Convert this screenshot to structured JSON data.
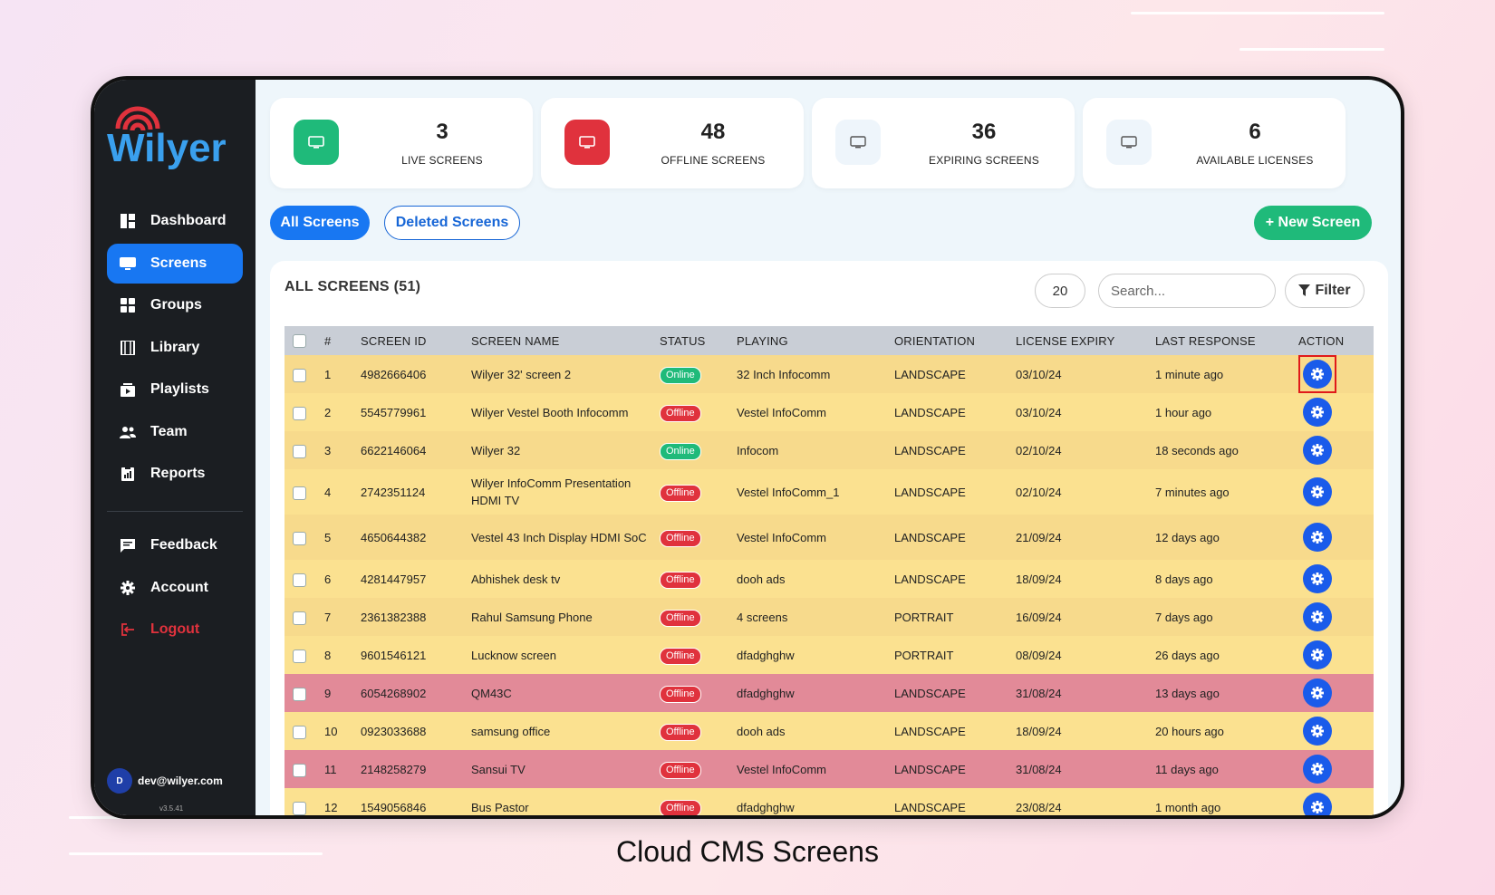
{
  "caption": "Cloud CMS Screens",
  "brand": {
    "name": "Wilyer",
    "primary": "#1877f2",
    "brand_red": "#e0323d",
    "green": "#1fba7a"
  },
  "sidebar": {
    "items": [
      {
        "label": "Dashboard",
        "icon": "dashboard-icon"
      },
      {
        "label": "Screens",
        "icon": "monitor-icon",
        "active": true
      },
      {
        "label": "Groups",
        "icon": "grid-icon"
      },
      {
        "label": "Library",
        "icon": "film-icon"
      },
      {
        "label": "Playlists",
        "icon": "playlist-icon"
      },
      {
        "label": "Team",
        "icon": "users-icon"
      },
      {
        "label": "Reports",
        "icon": "report-icon"
      }
    ],
    "secondary": [
      {
        "label": "Feedback",
        "icon": "feedback-icon"
      },
      {
        "label": "Account",
        "icon": "gear-icon"
      },
      {
        "label": "Logout",
        "icon": "logout-icon"
      }
    ],
    "user": {
      "initial": "D",
      "email": "dev@wilyer.com"
    },
    "version": "v3.5.41"
  },
  "stats": [
    {
      "value": "3",
      "label": "LIVE SCREENS"
    },
    {
      "value": "48",
      "label": "OFFLINE SCREENS"
    },
    {
      "value": "36",
      "label": "EXPIRING SCREENS"
    },
    {
      "value": "6",
      "label": "AVAILABLE LICENSES"
    }
  ],
  "tabs": {
    "all": "All Screens",
    "deleted": "Deleted Screens"
  },
  "new_screen_label": "+ New Screen",
  "panel": {
    "title": "ALL SCREENS (51)",
    "per_page": "20",
    "search_placeholder": "Search...",
    "filter_label": "Filter"
  },
  "table": {
    "columns": [
      "#",
      "SCREEN ID",
      "SCREEN NAME",
      "STATUS",
      "PLAYING",
      "ORIENTATION",
      "LICENSE EXPIRY",
      "LAST RESPONSE",
      "ACTION"
    ],
    "rows": [
      {
        "n": "1",
        "id": "4982666406",
        "name": "Wilyer 32' screen 2",
        "status": "Online",
        "playing": "32 Inch Infocomm",
        "orientation": "LANDSCAPE",
        "expiry": "03/10/24",
        "last": "1 minute ago",
        "tone": "yellow-alt"
      },
      {
        "n": "2",
        "id": "5545779961",
        "name": "Wilyer Vestel Booth Infocomm",
        "status": "Offline",
        "playing": "Vestel InfoComm",
        "orientation": "LANDSCAPE",
        "expiry": "03/10/24",
        "last": "1 hour ago",
        "tone": "yellow"
      },
      {
        "n": "3",
        "id": "6622146064",
        "name": "Wilyer 32",
        "status": "Online",
        "playing": "Infocom",
        "orientation": "LANDSCAPE",
        "expiry": "02/10/24",
        "last": "18 seconds ago",
        "tone": "yellow-alt"
      },
      {
        "n": "4",
        "id": "2742351124",
        "name": "Wilyer InfoComm Presentation HDMI TV",
        "status": "Offline",
        "playing": "Vestel InfoComm_1",
        "orientation": "LANDSCAPE",
        "expiry": "02/10/24",
        "last": "7 minutes ago",
        "tone": "yellow"
      },
      {
        "n": "5",
        "id": "4650644382",
        "name": "Vestel 43 Inch Display HDMI SoC",
        "status": "Offline",
        "playing": "Vestel InfoComm",
        "orientation": "LANDSCAPE",
        "expiry": "21/09/24",
        "last": "12 days ago",
        "tone": "yellow-alt"
      },
      {
        "n": "6",
        "id": "4281447957",
        "name": "Abhishek desk tv",
        "status": "Offline",
        "playing": "dooh ads",
        "orientation": "LANDSCAPE",
        "expiry": "18/09/24",
        "last": "8 days ago",
        "tone": "yellow"
      },
      {
        "n": "7",
        "id": "2361382388",
        "name": "Rahul Samsung Phone",
        "status": "Offline",
        "playing": "4 screens",
        "orientation": "PORTRAIT",
        "expiry": "16/09/24",
        "last": "7 days ago",
        "tone": "yellow-alt"
      },
      {
        "n": "8",
        "id": "9601546121",
        "name": "Lucknow screen",
        "status": "Offline",
        "playing": "dfadghghw",
        "orientation": "PORTRAIT",
        "expiry": "08/09/24",
        "last": "26 days ago",
        "tone": "yellow"
      },
      {
        "n": "9",
        "id": "6054268902",
        "name": "QM43C",
        "status": "Offline",
        "playing": "dfadghghw",
        "orientation": "LANDSCAPE",
        "expiry": "31/08/24",
        "last": "13 days ago",
        "tone": "red"
      },
      {
        "n": "10",
        "id": "0923033688",
        "name": "samsung office",
        "status": "Offline",
        "playing": "dooh ads",
        "orientation": "LANDSCAPE",
        "expiry": "18/09/24",
        "last": "20 hours ago",
        "tone": "yellow"
      },
      {
        "n": "11",
        "id": "2148258279",
        "name": "Sansui TV",
        "status": "Offline",
        "playing": "Vestel InfoComm",
        "orientation": "LANDSCAPE",
        "expiry": "31/08/24",
        "last": "11 days ago",
        "tone": "red"
      },
      {
        "n": "12",
        "id": "1549056846",
        "name": "Bus Pastor",
        "status": "Offline",
        "playing": "dfadghghw",
        "orientation": "LANDSCAPE",
        "expiry": "23/08/24",
        "last": "1 month ago",
        "tone": "yellow"
      }
    ]
  }
}
